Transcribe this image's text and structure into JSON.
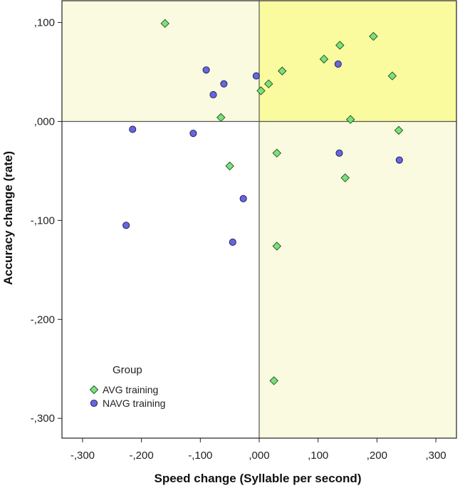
{
  "chart_data": {
    "type": "scatter",
    "title": "",
    "xlabel": "Speed change (Syllable per second)",
    "ylabel": "Accuracy change (rate)",
    "xlim": [
      -0.335,
      0.335
    ],
    "ylim": [
      -0.32,
      0.122
    ],
    "x_ticks": [
      -0.3,
      -0.2,
      -0.1,
      0.0,
      0.1,
      0.2,
      0.3
    ],
    "x_tick_labels": [
      "-,300",
      "-,200",
      "-,100",
      ",000",
      ",100",
      ",200",
      ",300"
    ],
    "y_ticks": [
      0.1,
      0.0,
      -0.1,
      -0.2,
      -0.3
    ],
    "y_tick_labels": [
      ",100",
      ",000",
      "-,100",
      "-,200",
      "-,300"
    ],
    "reference_lines": {
      "x": 0.0,
      "y": 0.0
    },
    "quadrant_fills": {
      "top_right": "#fafa9e",
      "top_left": "#fafae0",
      "bottom_right": "#fafae0",
      "bottom_left": "#ffffff"
    },
    "legend": {
      "title": "Group",
      "position": "bottom-left"
    },
    "series": [
      {
        "name": "AVG training",
        "marker": "diamond",
        "color": "#7be07b",
        "points": [
          [
            -0.16,
            0.099
          ],
          [
            -0.065,
            0.004
          ],
          [
            -0.05,
            -0.045
          ],
          [
            0.003,
            0.031
          ],
          [
            0.016,
            0.038
          ],
          [
            0.039,
            0.051
          ],
          [
            0.03,
            -0.032
          ],
          [
            0.03,
            -0.126
          ],
          [
            0.025,
            -0.262
          ],
          [
            0.11,
            0.063
          ],
          [
            0.137,
            0.077
          ],
          [
            0.155,
            0.002
          ],
          [
            0.146,
            -0.057
          ],
          [
            0.194,
            0.086
          ],
          [
            0.226,
            0.046
          ],
          [
            0.237,
            -0.009
          ]
        ]
      },
      {
        "name": "NAVG training",
        "marker": "circle",
        "color": "#6666dd",
        "points": [
          [
            -0.09,
            0.052
          ],
          [
            -0.078,
            0.027
          ],
          [
            -0.06,
            0.038
          ],
          [
            -0.005,
            0.046
          ],
          [
            -0.215,
            -0.008
          ],
          [
            -0.112,
            -0.012
          ],
          [
            -0.226,
            -0.105
          ],
          [
            -0.027,
            -0.078
          ],
          [
            -0.045,
            -0.122
          ],
          [
            0.134,
            0.058
          ],
          [
            0.136,
            -0.032
          ],
          [
            0.238,
            -0.039
          ]
        ]
      }
    ]
  }
}
